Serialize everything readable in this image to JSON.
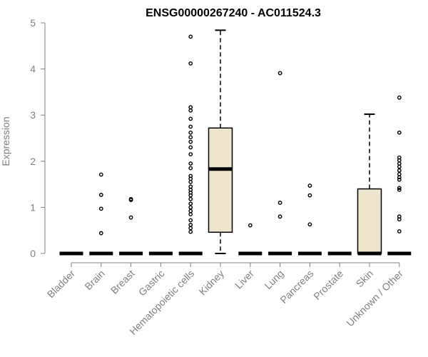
{
  "chart_data": {
    "type": "box",
    "title": "ENSG00000267240 - AC011524.3",
    "ylabel": "Expression",
    "xlabel": "",
    "ylim": [
      0,
      5
    ],
    "yticks": [
      0,
      1,
      2,
      3,
      4,
      5
    ],
    "box_fill": "#ede6cc",
    "categories": [
      "Bladder",
      "Brain",
      "Breast",
      "Gastric",
      "Hematopoietic cells",
      "Kidney",
      "Liver",
      "Lung",
      "Pancreas",
      "Prostate",
      "Skin",
      "Unknown / Other"
    ],
    "boxes": [
      {
        "q1": 0,
        "median": 0,
        "q3": 0,
        "whisker_low": 0,
        "whisker_high": 0,
        "outliers": []
      },
      {
        "q1": 0,
        "median": 0,
        "q3": 0,
        "whisker_low": 0,
        "whisker_high": 0,
        "outliers": [
          0.44,
          0.97,
          1.27,
          1.71
        ]
      },
      {
        "q1": 0,
        "median": 0,
        "q3": 0,
        "whisker_low": 0,
        "whisker_high": 0,
        "outliers": [
          0.78,
          1.16,
          1.18
        ]
      },
      {
        "q1": 0,
        "median": 0,
        "q3": 0,
        "whisker_low": 0,
        "whisker_high": 0,
        "outliers": []
      },
      {
        "q1": 0,
        "median": 0,
        "q3": 0,
        "whisker_low": 0,
        "whisker_high": 0,
        "outliers": [
          0.47,
          0.55,
          0.62,
          0.72,
          0.85,
          0.92,
          1.0,
          1.08,
          1.18,
          1.26,
          1.32,
          1.38,
          1.45,
          1.55,
          1.62,
          1.68,
          1.85,
          1.95,
          2.15,
          2.3,
          2.42,
          2.52,
          2.62,
          2.75,
          2.92,
          3.1,
          3.17,
          4.12,
          4.7
        ]
      },
      {
        "q1": 0.46,
        "median": 1.83,
        "q3": 2.72,
        "whisker_low": 0,
        "whisker_high": 4.84,
        "outliers": []
      },
      {
        "q1": 0,
        "median": 0,
        "q3": 0,
        "whisker_low": 0,
        "whisker_high": 0,
        "outliers": [
          0.61
        ]
      },
      {
        "q1": 0,
        "median": 0,
        "q3": 0,
        "whisker_low": 0,
        "whisker_high": 0,
        "outliers": [
          0.8,
          1.1,
          3.91
        ]
      },
      {
        "q1": 0,
        "median": 0,
        "q3": 0,
        "whisker_low": 0,
        "whisker_high": 0,
        "outliers": [
          0.63,
          1.26,
          1.47
        ]
      },
      {
        "q1": 0,
        "median": 0,
        "q3": 0,
        "whisker_low": 0,
        "whisker_high": 0,
        "outliers": []
      },
      {
        "q1": 0,
        "median": 0,
        "q3": 1.4,
        "whisker_low": 0,
        "whisker_high": 3.02,
        "outliers": []
      },
      {
        "q1": 0,
        "median": 0,
        "q3": 0,
        "whisker_low": 0,
        "whisker_high": 0,
        "outliers": [
          0.48,
          0.74,
          0.8,
          1.38,
          1.42,
          1.6,
          1.65,
          1.72,
          1.8,
          1.88,
          1.95,
          2.02,
          2.08,
          2.62,
          3.38
        ]
      }
    ]
  }
}
